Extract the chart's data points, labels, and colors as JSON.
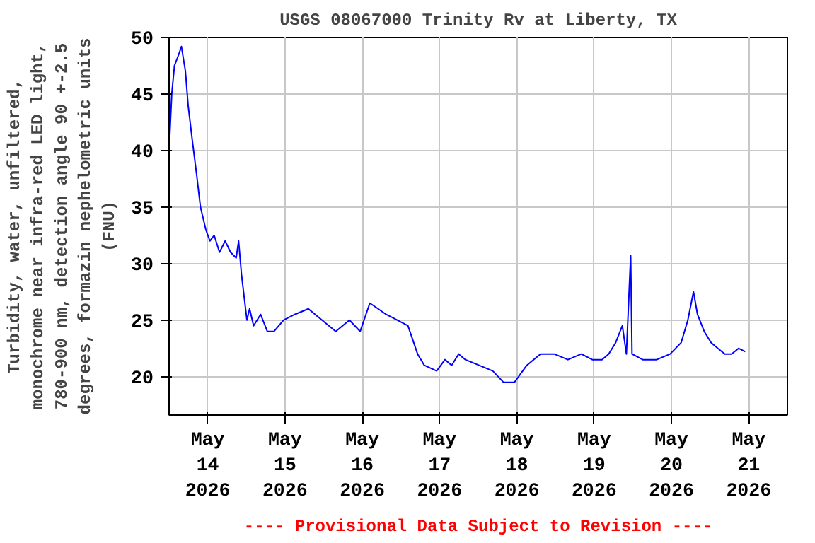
{
  "chart_data": {
    "type": "line",
    "title": "USGS 08067000 Trinity Rv at Liberty, TX",
    "ylabel": "Turbidity, water, unfiltered,\nmonochrome near infra-red LED light,\n780-900 nm, detection angle 90 +-2.5\ndegrees, formazin nephelometric units\n(FNU)",
    "annotations": [
      "---- Provisional Data Subject to Revision ----"
    ],
    "x": [
      "2026-05-13T12:00",
      "2026-05-13T12:50",
      "2026-05-13T13:40",
      "2026-05-13T15:00",
      "2026-05-13T15:50",
      "2026-05-13T17:05",
      "2026-05-13T17:55",
      "2026-05-13T19:10",
      "2026-05-13T20:30",
      "2026-05-13T21:45",
      "2026-05-13T22:35",
      "2026-05-13T23:25",
      "2026-05-14T00:40",
      "2026-05-14T02:00",
      "2026-05-14T03:40",
      "2026-05-14T05:25",
      "2026-05-14T07:05",
      "2026-05-14T08:50",
      "2026-05-14T09:35",
      "2026-05-14T10:30",
      "2026-05-14T11:20",
      "2026-05-14T12:10",
      "2026-05-14T13:00",
      "2026-05-14T14:15",
      "2026-05-14T16:25",
      "2026-05-14T18:30",
      "2026-05-14T20:35",
      "2026-05-14T23:35",
      "2026-05-15T03:00",
      "2026-05-15T07:15",
      "2026-05-15T11:30",
      "2026-05-15T15:45",
      "2026-05-15T20:00",
      "2026-05-15T23:20",
      "2026-05-16T02:20",
      "2026-05-16T04:55",
      "2026-05-16T07:25",
      "2026-05-16T10:50",
      "2026-05-16T14:10",
      "2026-05-16T17:10",
      "2026-05-16T19:15",
      "2026-05-16T23:05",
      "2026-05-17T01:40",
      "2026-05-17T03:45",
      "2026-05-17T05:55",
      "2026-05-17T08:00",
      "2026-05-17T12:15",
      "2026-05-17T16:30",
      "2026-05-17T19:50",
      "2026-05-17T23:15",
      "2026-05-18T03:05",
      "2026-05-18T07:20",
      "2026-05-18T11:35",
      "2026-05-18T15:50",
      "2026-05-18T20:00",
      "2026-05-18T23:25",
      "2026-05-19T02:25",
      "2026-05-19T04:30",
      "2026-05-19T06:40",
      "2026-05-19T08:45",
      "2026-05-19T10:00",
      "2026-05-19T11:20",
      "2026-05-19T11:45",
      "2026-05-19T15:05",
      "2026-05-19T19:25",
      "2026-05-19T23:35",
      "2026-05-20T03:00",
      "2026-05-20T05:05",
      "2026-05-20T06:50",
      "2026-05-20T08:05",
      "2026-05-20T10:10",
      "2026-05-20T12:20",
      "2026-05-20T14:25",
      "2026-05-20T16:35",
      "2026-05-20T18:40",
      "2026-05-20T20:50",
      "2026-05-20T22:55"
    ],
    "series": [
      {
        "color": "#0000ff",
        "values": [
          40,
          45,
          47.5,
          48.5,
          49.2,
          47,
          44,
          41,
          38,
          35,
          34,
          33,
          32,
          32.5,
          31,
          32,
          31,
          30.5,
          32,
          29,
          27,
          25,
          26,
          24.5,
          25.5,
          24,
          24,
          25,
          25.5,
          26,
          25,
          24,
          25,
          24,
          26.5,
          26,
          25.5,
          25,
          24.5,
          22,
          21,
          20.5,
          21.5,
          21,
          22,
          21.5,
          21,
          20.5,
          19.5,
          19.5,
          21,
          22,
          22,
          21.5,
          22,
          21.5,
          21.5,
          22,
          23,
          24.5,
          22,
          30.7,
          22,
          21.5,
          21.5,
          22,
          23,
          25,
          27.5,
          25.5,
          24,
          23,
          22.5,
          22,
          22,
          22.5,
          22.2
        ]
      }
    ],
    "xlim": [
      "2026-05-13T12:00",
      "2026-05-21T12:00"
    ],
    "xticks": [
      {
        "value": "2026-05-14",
        "label": "May\n14\n2026"
      },
      {
        "value": "2026-05-15",
        "label": "May\n15\n2026"
      },
      {
        "value": "2026-05-16",
        "label": "May\n16\n2026"
      },
      {
        "value": "2026-05-17",
        "label": "May\n17\n2026"
      },
      {
        "value": "2026-05-18",
        "label": "May\n18\n2026"
      },
      {
        "value": "2026-05-19",
        "label": "May\n19\n2026"
      },
      {
        "value": "2026-05-20",
        "label": "May\n20\n2026"
      },
      {
        "value": "2026-05-21",
        "label": "May\n21\n2026"
      }
    ],
    "ylim": [
      16.6,
      50
    ],
    "yticks": [
      20,
      25,
      30,
      35,
      40,
      45,
      50
    ],
    "grid": true,
    "marker": "none",
    "line_style": "solid"
  }
}
